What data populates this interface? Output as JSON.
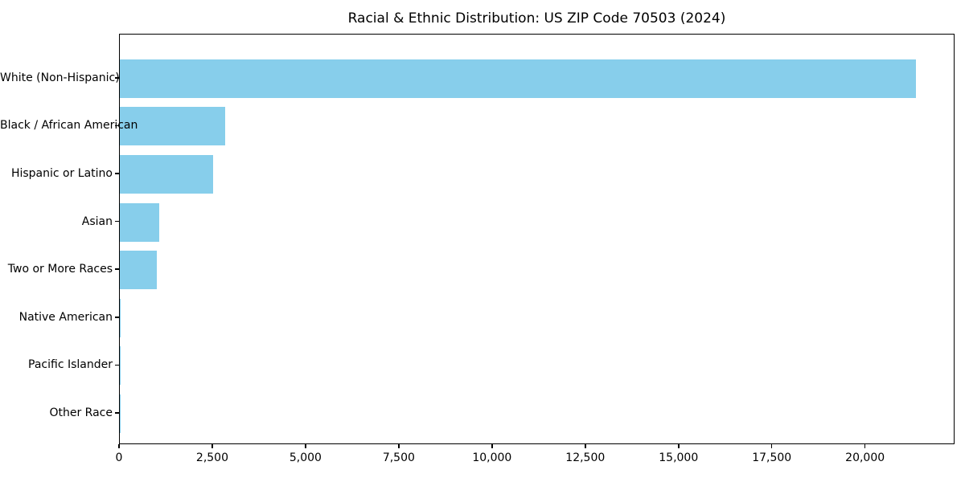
{
  "chart_data": {
    "type": "bar",
    "orientation": "horizontal",
    "title": "Racial & Ethnic Distribution: US ZIP Code 70503 (2024)",
    "categories": [
      "White (Non-Hispanic)",
      "Black / African American",
      "Hispanic or Latino",
      "Asian",
      "Two or More Races",
      "Native American",
      "Pacific Islander",
      "Other Race"
    ],
    "values": [
      21350,
      2820,
      2500,
      1050,
      1000,
      30,
      10,
      10
    ],
    "xlabel": "",
    "ylabel": "",
    "xlim": [
      0,
      22400
    ],
    "x_ticks": [
      0,
      2500,
      5000,
      7500,
      10000,
      12500,
      15000,
      17500,
      20000
    ],
    "x_tick_labels": [
      "0",
      "2,500",
      "5,000",
      "7,500",
      "10,000",
      "12,500",
      "15,000",
      "17,500",
      "20,000"
    ],
    "grid": false,
    "legend": null,
    "bar_color": "#87ceeb",
    "axis_color": "#000000",
    "text_color": "#000000",
    "background_color": "#ffffff"
  }
}
